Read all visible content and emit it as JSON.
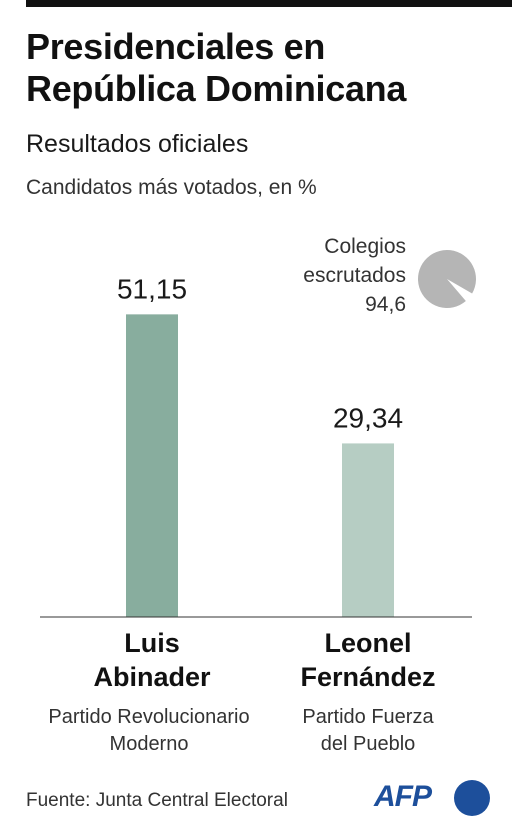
{
  "header": {
    "title_line1": "Presidenciales en",
    "title_line2": "República Dominicana",
    "subtitle": "Resultados oficiales",
    "unit": "Candidatos más votados, en %"
  },
  "colegios": {
    "line1": "Colegios",
    "line2": "escrutados",
    "value_label": "94,6",
    "value": 94.6,
    "pie_color": "#b5b5b5"
  },
  "chart_data": {
    "type": "bar",
    "categories": [
      "Luis Abinader",
      "Leonel Fernández"
    ],
    "values": [
      51.15,
      29.34
    ],
    "value_labels": [
      "51,15",
      "29,34"
    ],
    "colors": [
      "#88ad9e",
      "#b6cdc3"
    ],
    "ylim": [
      0,
      60
    ],
    "grid": false,
    "legend": "none"
  },
  "candidates": [
    {
      "name_line1": "Luis",
      "name_line2": "Abinader",
      "party_line1": "Partido Revolucionario",
      "party_line2": "Moderno"
    },
    {
      "name_line1": "Leonel",
      "name_line2": "Fernández",
      "party_line1": "Partido Fuerza",
      "party_line2": "del Pueblo"
    }
  ],
  "footer": {
    "source": "Fuente: Junta Central Electoral",
    "logo": "AFP",
    "logo_color": "#1d4f9b"
  }
}
